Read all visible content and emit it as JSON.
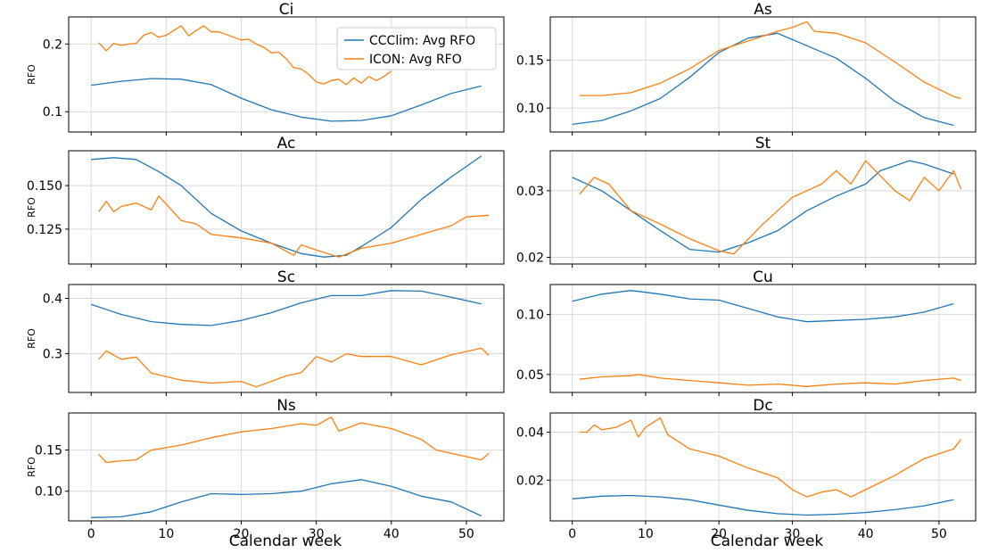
{
  "figure": {
    "xlabel": "Calendar week",
    "ylabel": "RFO"
  },
  "legend": {
    "entries": [
      {
        "label": "CCClim: Avg RFO",
        "color": "#1f77b4"
      },
      {
        "label": "ICON: Avg RFO",
        "color": "#ff7f0e"
      }
    ],
    "placement": "upper right of first panel"
  },
  "colors": {
    "ccclim": "#1f77b4",
    "icon": "#ff7f0e",
    "grid": "#d9d9d9",
    "frame": "#000000"
  },
  "chart_data": [
    {
      "type": "line",
      "title": "Ci",
      "ylabel": "RFO",
      "grid": true,
      "xlim": [
        -3,
        55
      ],
      "ylim": [
        0.07,
        0.24
      ],
      "x_ticks": [
        0,
        10,
        20,
        30,
        40,
        50
      ],
      "y_ticks": [
        0.1,
        0.2
      ],
      "y_tick_labels": [
        "0.1",
        "0.2"
      ],
      "series": [
        {
          "name": "CCClim: Avg RFO",
          "x": [
            0,
            4,
            8,
            12,
            16,
            20,
            24,
            28,
            32,
            36,
            40,
            44,
            48,
            52
          ],
          "values": [
            0.139,
            0.145,
            0.149,
            0.148,
            0.14,
            0.12,
            0.103,
            0.092,
            0.086,
            0.087,
            0.094,
            0.11,
            0.127,
            0.138
          ]
        },
        {
          "name": "ICON: Avg RFO",
          "x": [
            1,
            2,
            3,
            4,
            5,
            6,
            7,
            8,
            9,
            10,
            11,
            12,
            13,
            14,
            15,
            16,
            17,
            18,
            19,
            20,
            21,
            22,
            23,
            24,
            25,
            26,
            27,
            28,
            29,
            30,
            31,
            32,
            33,
            34,
            35,
            36,
            37,
            38,
            39,
            40
          ],
          "values": [
            0.202,
            0.19,
            0.201,
            0.198,
            0.2,
            0.201,
            0.213,
            0.217,
            0.21,
            0.213,
            0.22,
            0.227,
            0.212,
            0.22,
            0.227,
            0.218,
            0.218,
            0.214,
            0.21,
            0.206,
            0.207,
            0.2,
            0.195,
            0.187,
            0.188,
            0.178,
            0.165,
            0.163,
            0.155,
            0.144,
            0.141,
            0.146,
            0.148,
            0.14,
            0.15,
            0.142,
            0.152,
            0.146,
            0.152,
            0.16
          ]
        }
      ]
    },
    {
      "type": "line",
      "title": "As",
      "ylabel": "",
      "grid": true,
      "xlim": [
        -3,
        55
      ],
      "ylim": [
        0.075,
        0.195
      ],
      "x_ticks": [
        0,
        10,
        20,
        30,
        40,
        50
      ],
      "y_ticks": [
        0.1,
        0.15
      ],
      "y_tick_labels": [
        "0.10",
        "0.15"
      ],
      "series": [
        {
          "name": "CCClim: Avg RFO",
          "x": [
            0,
            4,
            8,
            12,
            16,
            20,
            24,
            28,
            32,
            36,
            40,
            44,
            48,
            52
          ],
          "values": [
            0.083,
            0.087,
            0.097,
            0.11,
            0.132,
            0.158,
            0.173,
            0.178,
            0.165,
            0.152,
            0.131,
            0.107,
            0.09,
            0.082
          ]
        },
        {
          "name": "ICON: Avg RFO",
          "x": [
            1,
            4,
            8,
            12,
            16,
            20,
            24,
            28,
            30,
            32,
            33,
            36,
            40,
            44,
            48,
            52,
            53
          ],
          "values": [
            0.113,
            0.113,
            0.116,
            0.126,
            0.141,
            0.16,
            0.17,
            0.18,
            0.184,
            0.19,
            0.18,
            0.178,
            0.168,
            0.148,
            0.127,
            0.112,
            0.11
          ]
        }
      ]
    },
    {
      "type": "line",
      "title": "Ac",
      "ylabel": "RFO",
      "grid": true,
      "xlim": [
        -3,
        55
      ],
      "ylim": [
        0.105,
        0.17
      ],
      "x_ticks": [
        0,
        10,
        20,
        30,
        40,
        50
      ],
      "y_ticks": [
        0.125,
        0.15
      ],
      "y_tick_labels": [
        "0.125",
        "0.150"
      ],
      "series": [
        {
          "name": "CCClim: Avg RFO",
          "x": [
            0,
            3,
            6,
            9,
            12,
            16,
            20,
            24,
            28,
            31,
            34,
            36,
            40,
            44,
            48,
            52
          ],
          "values": [
            0.165,
            0.166,
            0.165,
            0.158,
            0.15,
            0.134,
            0.124,
            0.117,
            0.111,
            0.109,
            0.11,
            0.115,
            0.126,
            0.142,
            0.155,
            0.167
          ]
        },
        {
          "name": "ICON: Avg RFO",
          "x": [
            1,
            2,
            3,
            4,
            6,
            8,
            9,
            12,
            14,
            16,
            20,
            24,
            27,
            28,
            30,
            33,
            36,
            40,
            44,
            48,
            50,
            53
          ],
          "values": [
            0.135,
            0.141,
            0.135,
            0.138,
            0.14,
            0.136,
            0.144,
            0.13,
            0.128,
            0.122,
            0.12,
            0.117,
            0.11,
            0.116,
            0.113,
            0.109,
            0.114,
            0.117,
            0.122,
            0.127,
            0.132,
            0.133
          ]
        }
      ]
    },
    {
      "type": "line",
      "title": "St",
      "ylabel": "",
      "grid": true,
      "xlim": [
        -3,
        55
      ],
      "ylim": [
        0.019,
        0.036
      ],
      "x_ticks": [
        0,
        10,
        20,
        30,
        40,
        50
      ],
      "y_ticks": [
        0.02,
        0.03
      ],
      "y_tick_labels": [
        "0.02",
        "0.03"
      ],
      "series": [
        {
          "name": "CCClim: Avg RFO",
          "x": [
            0,
            4,
            8,
            12,
            16,
            20,
            24,
            28,
            32,
            36,
            40,
            42,
            46,
            48,
            52
          ],
          "values": [
            0.032,
            0.03,
            0.027,
            0.024,
            0.0212,
            0.0208,
            0.0222,
            0.024,
            0.027,
            0.0292,
            0.031,
            0.033,
            0.0345,
            0.034,
            0.0325
          ]
        },
        {
          "name": "ICON: Avg RFO",
          "x": [
            1,
            3,
            5,
            8,
            12,
            16,
            20,
            22,
            26,
            30,
            32,
            34,
            36,
            38,
            40,
            44,
            46,
            48,
            50,
            52,
            53
          ],
          "values": [
            0.0295,
            0.032,
            0.031,
            0.027,
            0.025,
            0.0228,
            0.021,
            0.0205,
            0.025,
            0.029,
            0.03,
            0.031,
            0.033,
            0.031,
            0.0345,
            0.03,
            0.0285,
            0.032,
            0.03,
            0.033,
            0.0302
          ]
        }
      ]
    },
    {
      "type": "line",
      "title": "Sc",
      "ylabel": "RFO",
      "grid": true,
      "xlim": [
        -3,
        55
      ],
      "ylim": [
        0.23,
        0.425
      ],
      "x_ticks": [
        0,
        10,
        20,
        30,
        40,
        50
      ],
      "y_ticks": [
        0.3,
        0.4
      ],
      "y_tick_labels": [
        "0.3",
        "0.4"
      ],
      "series": [
        {
          "name": "CCClim: Avg RFO",
          "x": [
            0,
            4,
            8,
            12,
            16,
            20,
            24,
            28,
            32,
            36,
            40,
            44,
            48,
            52
          ],
          "values": [
            0.389,
            0.371,
            0.358,
            0.353,
            0.351,
            0.36,
            0.374,
            0.392,
            0.405,
            0.405,
            0.414,
            0.413,
            0.402,
            0.39
          ]
        },
        {
          "name": "ICON: Avg RFO",
          "x": [
            1,
            2,
            4,
            6,
            8,
            12,
            16,
            20,
            22,
            26,
            28,
            30,
            32,
            34,
            36,
            40,
            44,
            48,
            52,
            53
          ],
          "values": [
            0.29,
            0.305,
            0.29,
            0.294,
            0.265,
            0.252,
            0.247,
            0.25,
            0.24,
            0.26,
            0.266,
            0.295,
            0.285,
            0.3,
            0.295,
            0.295,
            0.28,
            0.298,
            0.31,
            0.297
          ]
        }
      ]
    },
    {
      "type": "line",
      "title": "Cu",
      "ylabel": "",
      "grid": true,
      "xlim": [
        -3,
        55
      ],
      "ylim": [
        0.035,
        0.125
      ],
      "x_ticks": [
        0,
        10,
        20,
        30,
        40,
        50
      ],
      "y_ticks": [
        0.05,
        0.1
      ],
      "y_tick_labels": [
        "0.05",
        "0.10"
      ],
      "series": [
        {
          "name": "CCClim: Avg RFO",
          "x": [
            0,
            4,
            8,
            12,
            16,
            20,
            24,
            28,
            32,
            36,
            40,
            44,
            48,
            52
          ],
          "values": [
            0.111,
            0.117,
            0.12,
            0.117,
            0.113,
            0.112,
            0.105,
            0.098,
            0.094,
            0.095,
            0.096,
            0.098,
            0.102,
            0.109
          ]
        },
        {
          "name": "ICON: Avg RFO",
          "x": [
            1,
            4,
            8,
            9,
            12,
            16,
            20,
            24,
            28,
            32,
            36,
            40,
            44,
            48,
            52,
            53
          ],
          "values": [
            0.046,
            0.048,
            0.049,
            0.05,
            0.047,
            0.045,
            0.043,
            0.041,
            0.042,
            0.04,
            0.042,
            0.043,
            0.042,
            0.045,
            0.047,
            0.045
          ]
        }
      ]
    },
    {
      "type": "line",
      "title": "Ns",
      "ylabel": "RFO",
      "grid": true,
      "xlim": [
        -3,
        55
      ],
      "ylim": [
        0.064,
        0.195
      ],
      "x_ticks": [
        0,
        10,
        20,
        30,
        40,
        50
      ],
      "y_ticks": [
        0.1,
        0.15
      ],
      "y_tick_labels": [
        "0.10",
        "0.15"
      ],
      "series": [
        {
          "name": "CCClim: Avg RFO",
          "x": [
            0,
            4,
            8,
            12,
            16,
            20,
            24,
            28,
            32,
            36,
            40,
            44,
            48,
            52
          ],
          "values": [
            0.068,
            0.069,
            0.075,
            0.087,
            0.097,
            0.096,
            0.097,
            0.1,
            0.109,
            0.114,
            0.106,
            0.094,
            0.087,
            0.07
          ]
        },
        {
          "name": "ICON: Avg RFO",
          "x": [
            1,
            2,
            4,
            6,
            8,
            12,
            16,
            20,
            24,
            28,
            30,
            32,
            33,
            36,
            40,
            44,
            46,
            48,
            52,
            53
          ],
          "values": [
            0.145,
            0.135,
            0.137,
            0.138,
            0.15,
            0.156,
            0.165,
            0.172,
            0.176,
            0.182,
            0.18,
            0.19,
            0.173,
            0.183,
            0.176,
            0.163,
            0.15,
            0.146,
            0.138,
            0.146
          ]
        }
      ]
    },
    {
      "type": "line",
      "title": "Dc",
      "ylabel": "",
      "grid": true,
      "xlim": [
        -3,
        55
      ],
      "ylim": [
        0.003,
        0.048
      ],
      "x_ticks": [
        0,
        10,
        20,
        30,
        40,
        50
      ],
      "y_ticks": [
        0.02,
        0.04
      ],
      "y_tick_labels": [
        "0.02",
        "0.04"
      ],
      "series": [
        {
          "name": "CCClim: Avg RFO",
          "x": [
            0,
            4,
            8,
            12,
            16,
            20,
            24,
            28,
            32,
            36,
            40,
            44,
            48,
            52
          ],
          "values": [
            0.0122,
            0.0133,
            0.0136,
            0.013,
            0.0118,
            0.0096,
            0.0074,
            0.006,
            0.0054,
            0.0058,
            0.0065,
            0.0077,
            0.0093,
            0.0118
          ]
        },
        {
          "name": "ICON: Avg RFO",
          "x": [
            1,
            2,
            3,
            4,
            6,
            8,
            9,
            10,
            12,
            13,
            16,
            20,
            24,
            28,
            30,
            32,
            34,
            36,
            38,
            40,
            44,
            48,
            52,
            53
          ],
          "values": [
            0.04,
            0.04,
            0.043,
            0.041,
            0.042,
            0.045,
            0.038,
            0.042,
            0.046,
            0.039,
            0.033,
            0.03,
            0.025,
            0.021,
            0.016,
            0.013,
            0.015,
            0.016,
            0.013,
            0.016,
            0.022,
            0.029,
            0.033,
            0.037
          ]
        }
      ]
    }
  ]
}
